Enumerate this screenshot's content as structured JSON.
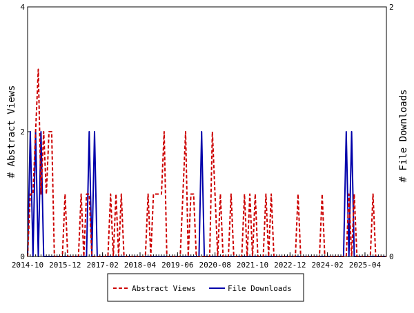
{
  "chart_data": {
    "type": "line",
    "xlabel": "",
    "ylabel_left": "# Abstract Views",
    "ylabel_right": "# File Downloads",
    "ylim_left": [
      0,
      4
    ],
    "ylim_right": [
      0,
      2
    ],
    "y_ticks_left": [
      "0",
      "2",
      "4"
    ],
    "y_ticks_right": [
      "0",
      "2"
    ],
    "x_range": [
      "2014-10",
      "2025-12"
    ],
    "x_tick_labels": [
      "2014-10",
      "2015-12",
      "2017-02",
      "2018-04",
      "2019-06",
      "2020-08",
      "2021-10",
      "2022-12",
      "2024-02",
      "2025-04"
    ],
    "grid": false,
    "legend_position": "bottom-center",
    "series": [
      {
        "name": "Abstract Views",
        "axis": "left",
        "color": "#cc0000",
        "style": "dashed",
        "values": [
          [
            "2014-10-01",
            0
          ],
          [
            "2014-11-01",
            1
          ],
          [
            "2014-12-01",
            1
          ],
          [
            "2015-01-01",
            2
          ],
          [
            "2015-02-01",
            3
          ],
          [
            "2015-03-01",
            1
          ],
          [
            "2015-04-01",
            2
          ],
          [
            "2015-05-01",
            1
          ],
          [
            "2015-06-01",
            2
          ],
          [
            "2015-07-01",
            2
          ],
          [
            "2015-08-01",
            0
          ],
          [
            "2015-11-01",
            0
          ],
          [
            "2015-12-01",
            1
          ],
          [
            "2016-01-01",
            0
          ],
          [
            "2016-05-01",
            0
          ],
          [
            "2016-06-01",
            1
          ],
          [
            "2016-07-01",
            0
          ],
          [
            "2016-08-01",
            1
          ],
          [
            "2016-09-01",
            1
          ],
          [
            "2016-10-01",
            0
          ],
          [
            "2017-04-01",
            0
          ],
          [
            "2017-05-01",
            1
          ],
          [
            "2017-06-01",
            0
          ],
          [
            "2017-07-01",
            1
          ],
          [
            "2017-08-01",
            0
          ],
          [
            "2017-09-01",
            1
          ],
          [
            "2017-10-01",
            0
          ],
          [
            "2018-06-01",
            0
          ],
          [
            "2018-07-01",
            1
          ],
          [
            "2018-08-01",
            0
          ],
          [
            "2018-09-01",
            1
          ],
          [
            "2018-10-01",
            1
          ],
          [
            "2018-11-01",
            1
          ],
          [
            "2018-12-01",
            1
          ],
          [
            "2019-01-01",
            2
          ],
          [
            "2019-02-01",
            0
          ],
          [
            "2019-07-01",
            0
          ],
          [
            "2019-08-01",
            1
          ],
          [
            "2019-09-01",
            2
          ],
          [
            "2019-10-01",
            0
          ],
          [
            "2019-11-01",
            1
          ],
          [
            "2019-12-01",
            1
          ],
          [
            "2020-01-01",
            0
          ],
          [
            "2020-06-01",
            0
          ],
          [
            "2020-07-01",
            2
          ],
          [
            "2020-08-01",
            1
          ],
          [
            "2020-09-01",
            0
          ],
          [
            "2020-10-01",
            1
          ],
          [
            "2020-11-01",
            0
          ],
          [
            "2021-01-01",
            0
          ],
          [
            "2021-02-01",
            1
          ],
          [
            "2021-03-01",
            0
          ],
          [
            "2021-06-01",
            0
          ],
          [
            "2021-07-01",
            1
          ],
          [
            "2021-08-01",
            0
          ],
          [
            "2021-09-01",
            1
          ],
          [
            "2021-10-01",
            0
          ],
          [
            "2021-11-01",
            1
          ],
          [
            "2021-12-01",
            0
          ],
          [
            "2022-02-01",
            0
          ],
          [
            "2022-03-01",
            1
          ],
          [
            "2022-04-01",
            0
          ],
          [
            "2022-05-01",
            1
          ],
          [
            "2022-06-01",
            0
          ],
          [
            "2023-02-01",
            0
          ],
          [
            "2023-03-01",
            1
          ],
          [
            "2023-04-01",
            0
          ],
          [
            "2023-11-01",
            0
          ],
          [
            "2023-12-01",
            1
          ],
          [
            "2024-01-01",
            0
          ],
          [
            "2024-09-01",
            0
          ],
          [
            "2024-10-01",
            1
          ],
          [
            "2024-11-01",
            0
          ],
          [
            "2024-12-01",
            1
          ],
          [
            "2025-01-01",
            0
          ],
          [
            "2025-06-01",
            0
          ],
          [
            "2025-07-01",
            1
          ],
          [
            "2025-08-01",
            0
          ],
          [
            "2025-12-01",
            0
          ]
        ]
      },
      {
        "name": "File Downloads",
        "axis": "right",
        "color": "#0000aa",
        "style": "solid",
        "values": [
          [
            "2014-10-01",
            0
          ],
          [
            "2014-11-01",
            1
          ],
          [
            "2014-12-01",
            0
          ],
          [
            "2015-01-01",
            1
          ],
          [
            "2015-02-01",
            0
          ],
          [
            "2015-03-01",
            1
          ],
          [
            "2015-04-01",
            0
          ],
          [
            "2015-05-01",
            0
          ],
          [
            "2016-08-01",
            0
          ],
          [
            "2016-09-01",
            1
          ],
          [
            "2016-10-01",
            0
          ],
          [
            "2016-11-01",
            1
          ],
          [
            "2016-12-01",
            0
          ],
          [
            "2020-02-01",
            0
          ],
          [
            "2020-03-01",
            1
          ],
          [
            "2020-04-01",
            0
          ],
          [
            "2024-08-01",
            0
          ],
          [
            "2024-09-01",
            1
          ],
          [
            "2024-10-01",
            0
          ],
          [
            "2024-11-01",
            1
          ],
          [
            "2024-12-01",
            0
          ],
          [
            "2025-12-01",
            0
          ]
        ]
      }
    ]
  }
}
